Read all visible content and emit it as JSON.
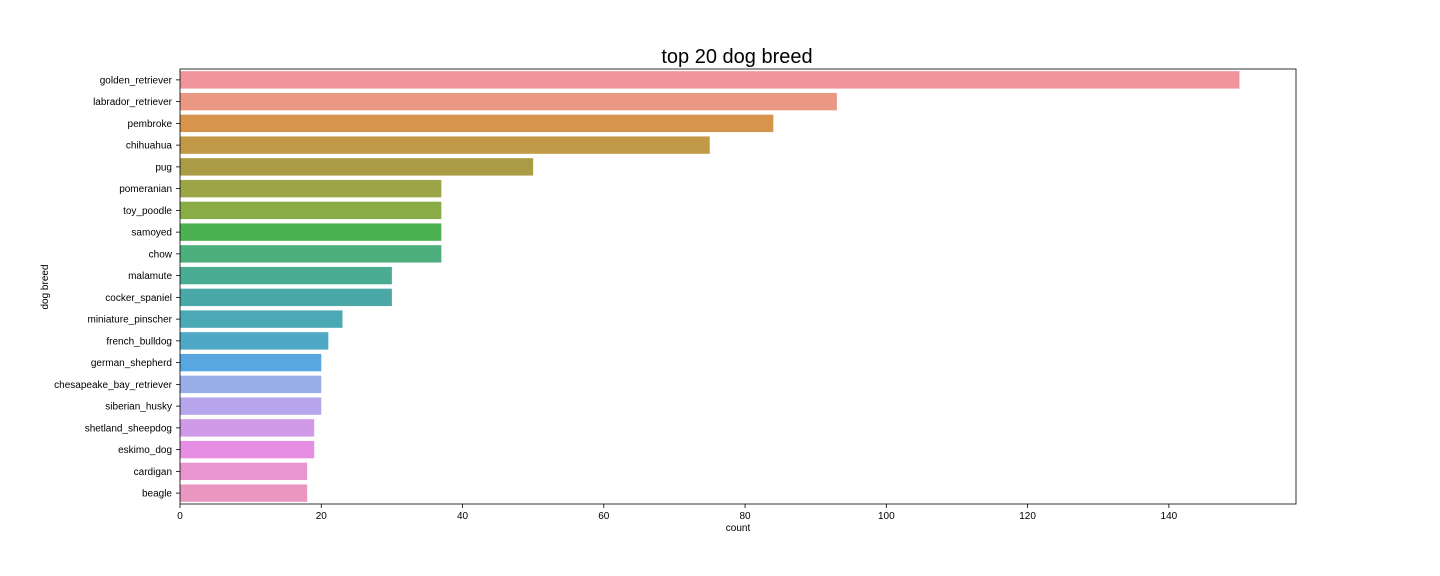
{
  "chart_data": {
    "type": "bar",
    "orientation": "horizontal",
    "title": "top 20 dog breed",
    "xlabel": "count",
    "ylabel": "dog breed",
    "xlim": [
      0,
      158
    ],
    "xticks": [
      0,
      20,
      40,
      60,
      80,
      100,
      120,
      140
    ],
    "grid": false,
    "categories": [
      "golden_retriever",
      "labrador_retriever",
      "pembroke",
      "chihuahua",
      "pug",
      "pomeranian",
      "toy_poodle",
      "samoyed",
      "chow",
      "malamute",
      "cocker_spaniel",
      "miniature_pinscher",
      "french_bulldog",
      "german_shepherd",
      "chesapeake_bay_retriever",
      "siberian_husky",
      "shetland_sheepdog",
      "eskimo_dog",
      "cardigan",
      "beagle"
    ],
    "values": [
      150,
      93,
      84,
      75,
      50,
      37,
      37,
      37,
      37,
      30,
      30,
      23,
      21,
      20,
      20,
      20,
      19,
      19,
      18,
      18
    ],
    "colors": [
      "#ef949b",
      "#ea9784",
      "#d6944d",
      "#c29a47",
      "#aa9c44",
      "#9ba546",
      "#8aac47",
      "#4bb04f",
      "#4caf7d",
      "#4bac94",
      "#4aa8a7",
      "#4aa9b4",
      "#4ea8c6",
      "#59a7e0",
      "#97aee9",
      "#b6a5ec",
      "#d09ae8",
      "#e68ee4",
      "#e895d0",
      "#e996c0"
    ]
  }
}
